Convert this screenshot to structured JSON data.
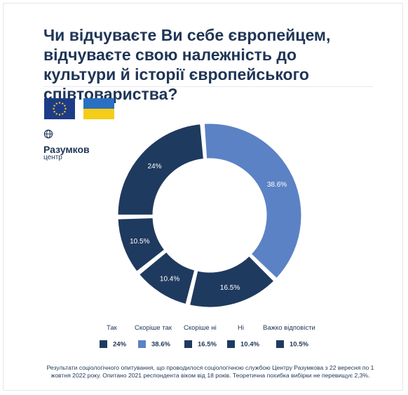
{
  "title": "Чи відчуваєте Ви себе європейцем, відчуваєте свою належність до культури й історії європейського співтовариства?",
  "logo": {
    "name": "Разумков",
    "subtitle": "центр"
  },
  "icons": {
    "eu_flag": "eu-flag-icon",
    "ua_flag": "ukraine-flag-icon",
    "globe": "globe-icon"
  },
  "colors": {
    "dark": "#1f3a5f",
    "light": "#5b82c4",
    "ua_blue": "#2a6fc0",
    "ua_yellow": "#f5cd18",
    "eu_blue": "#1d3c87",
    "eu_star": "#f5c518"
  },
  "chart_data": {
    "type": "pie",
    "labels": [
      "Так",
      "Скоріше так",
      "Скоріше ні",
      "Ні",
      "Важко відповісти"
    ],
    "values": [
      24,
      38.6,
      16.5,
      10.4,
      10.5
    ],
    "value_labels": [
      "24%",
      "38.6%",
      "16.5%",
      "10.4%",
      "10.5%"
    ],
    "legend_values": [
      "24%",
      "38.6%",
      "16.5%",
      "10.4%",
      "10.5%"
    ],
    "colors": [
      "#1f3a5f",
      "#5b82c4",
      "#1f3a5f",
      "#1f3a5f",
      "#1f3a5f"
    ],
    "donut": true,
    "legend_position": "bottom"
  },
  "footnote": "Результати соціологічного опитування, що проводилося соціологічною службою Центру Разумкова з 22 вересня по 1 жовтня 2022 року. Опитано 2021 респондента віком від 18 років. Теоретична похибка вибірки не перевищує 2,3%."
}
